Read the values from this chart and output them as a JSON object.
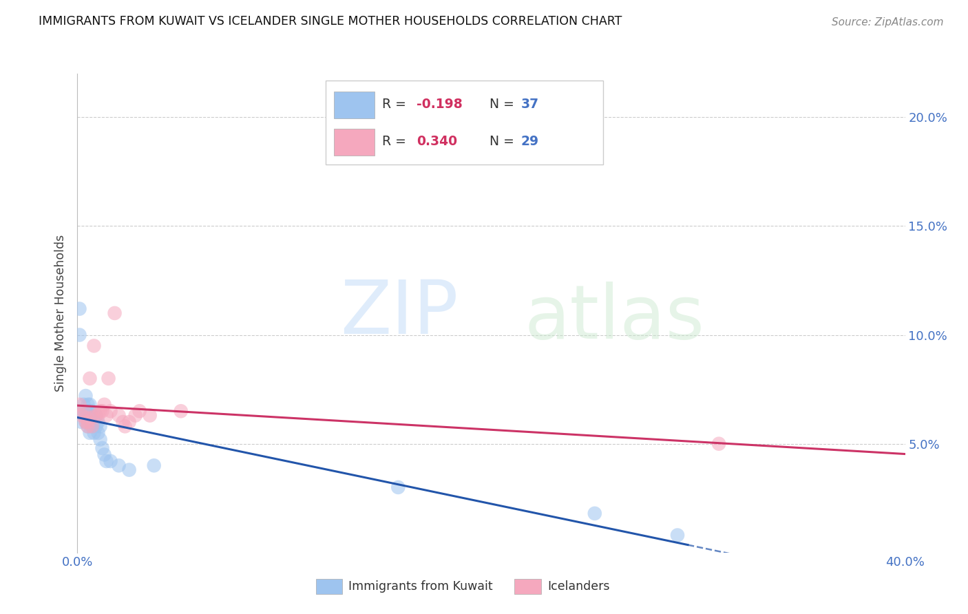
{
  "title": "IMMIGRANTS FROM KUWAIT VS ICELANDER SINGLE MOTHER HOUSEHOLDS CORRELATION CHART",
  "source": "Source: ZipAtlas.com",
  "ylabel": "Single Mother Households",
  "xlim": [
    0.0,
    0.4
  ],
  "ylim": [
    0.0,
    0.22
  ],
  "color_kuwait": "#9ec4ef",
  "color_iceland": "#f5a8be",
  "color_kuwait_line": "#2255aa",
  "color_iceland_line": "#cc3366",
  "legend_r1": "-0.198",
  "legend_n1": "37",
  "legend_r2": "0.340",
  "legend_n2": "29",
  "kuwait_x": [
    0.001,
    0.001,
    0.002,
    0.002,
    0.003,
    0.003,
    0.004,
    0.004,
    0.004,
    0.005,
    0.005,
    0.005,
    0.006,
    0.006,
    0.006,
    0.006,
    0.007,
    0.007,
    0.007,
    0.008,
    0.008,
    0.009,
    0.009,
    0.01,
    0.01,
    0.011,
    0.011,
    0.012,
    0.013,
    0.014,
    0.016,
    0.02,
    0.025,
    0.037,
    0.155,
    0.25,
    0.29
  ],
  "kuwait_y": [
    0.112,
    0.1,
    0.065,
    0.06,
    0.068,
    0.063,
    0.072,
    0.065,
    0.06,
    0.068,
    0.063,
    0.058,
    0.068,
    0.065,
    0.06,
    0.055,
    0.065,
    0.063,
    0.058,
    0.06,
    0.055,
    0.063,
    0.058,
    0.06,
    0.055,
    0.058,
    0.052,
    0.048,
    0.045,
    0.042,
    0.042,
    0.04,
    0.038,
    0.04,
    0.03,
    0.018,
    0.008
  ],
  "iceland_x": [
    0.001,
    0.002,
    0.003,
    0.004,
    0.004,
    0.005,
    0.005,
    0.006,
    0.007,
    0.007,
    0.008,
    0.009,
    0.01,
    0.011,
    0.012,
    0.013,
    0.014,
    0.015,
    0.016,
    0.018,
    0.02,
    0.022,
    0.023,
    0.025,
    0.028,
    0.03,
    0.035,
    0.05,
    0.31
  ],
  "iceland_y": [
    0.068,
    0.063,
    0.065,
    0.06,
    0.062,
    0.06,
    0.058,
    0.08,
    0.058,
    0.062,
    0.095,
    0.063,
    0.063,
    0.065,
    0.065,
    0.068,
    0.063,
    0.08,
    0.065,
    0.11,
    0.063,
    0.06,
    0.058,
    0.06,
    0.063,
    0.065,
    0.063,
    0.065,
    0.05
  ]
}
